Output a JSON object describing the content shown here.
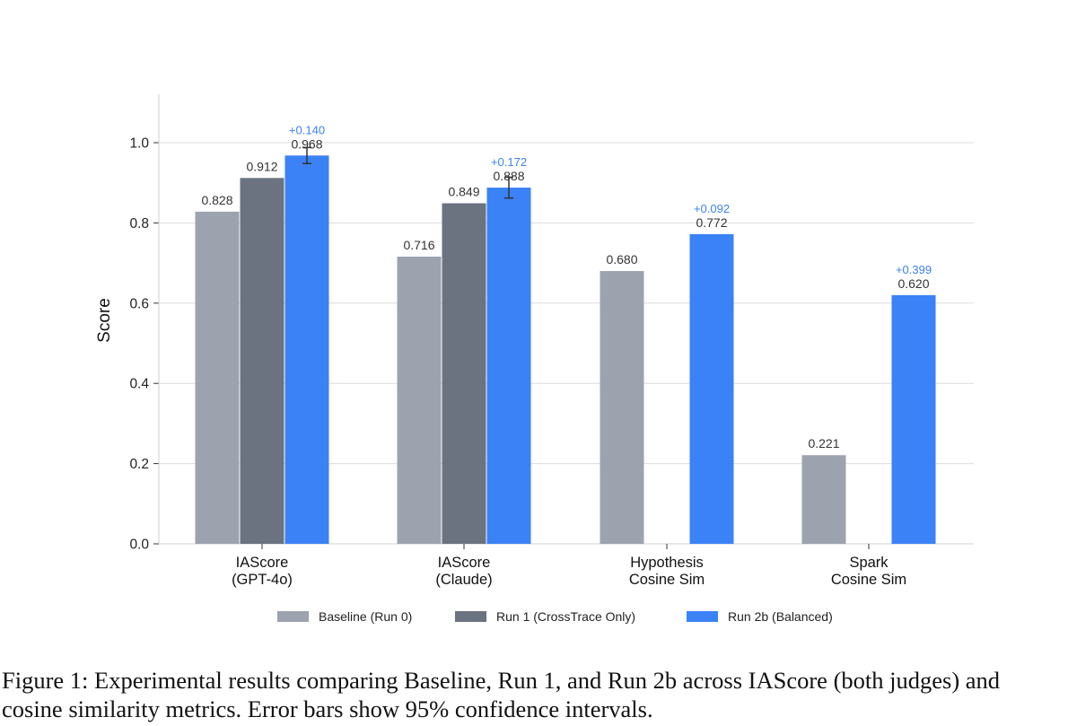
{
  "chart_data": {
    "type": "bar",
    "ylabel": "Score",
    "ylim": [
      0,
      1.12
    ],
    "yticks": [
      "0.0",
      "0.2",
      "0.4",
      "0.6",
      "0.8",
      "1.0"
    ],
    "grid": "horizontal",
    "legend_position": "bottom",
    "categories": [
      [
        "IAScore",
        "(GPT-4o)"
      ],
      [
        "IAScore",
        "(Claude)"
      ],
      [
        "Hypothesis",
        "Cosine Sim"
      ],
      [
        "Spark",
        "Cosine Sim"
      ]
    ],
    "series": [
      {
        "name": "Baseline (Run 0)",
        "color": "#9ca3af",
        "values": [
          0.828,
          0.716,
          0.68,
          0.221
        ],
        "labels": [
          "0.828",
          "0.716",
          "0.680",
          "0.221"
        ]
      },
      {
        "name": "Run 1 (CrossTrace Only)",
        "color": "#6b7280",
        "values": [
          0.912,
          0.849,
          null,
          null
        ],
        "labels": [
          "0.912",
          "0.849",
          null,
          null
        ]
      },
      {
        "name": "Run 2b (Balanced)",
        "color": "#3b82f6",
        "values": [
          0.968,
          0.888,
          0.772,
          0.62
        ],
        "labels": [
          "0.968",
          "0.888",
          "0.772",
          "0.620"
        ],
        "deltas": [
          "+0.140",
          "+0.172",
          "+0.092",
          "+0.399"
        ],
        "delta_color": "#3b82f6",
        "error_bars": [
          [
            0.948,
            0.988
          ],
          [
            0.862,
            0.914
          ],
          null,
          null
        ]
      }
    ]
  },
  "caption": "Figure 1: Experimental results comparing Baseline, Run 1, and Run 2b across IAScore (both judges) and cosine similarity metrics. Error bars show 95% confidence intervals."
}
